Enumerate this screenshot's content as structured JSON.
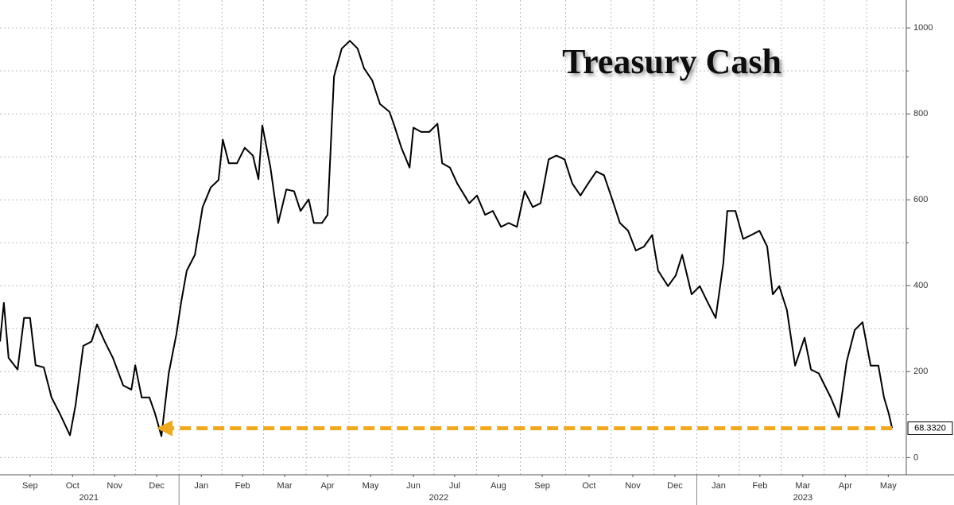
{
  "chart_data": {
    "type": "line",
    "title": "Treasury Cash",
    "x": [
      0,
      0.09,
      0.2,
      0.41,
      0.56,
      0.7,
      0.83,
      1.02,
      1.2,
      1.39,
      1.63,
      1.76,
      1.94,
      2.13,
      2.26,
      2.44,
      2.63,
      2.87,
      3.06,
      3.15,
      3.3,
      3.48,
      3.61,
      3.76,
      3.93,
      4.11,
      4.22,
      4.35,
      4.54,
      4.72,
      4.91,
      5.09,
      5.19,
      5.33,
      5.52,
      5.7,
      5.89,
      6.02,
      6.11,
      6.3,
      6.48,
      6.67,
      6.85,
      7,
      7.19,
      7.31,
      7.5,
      7.63,
      7.78,
      7.96,
      8.15,
      8.33,
      8.48,
      8.67,
      8.85,
      9.07,
      9.17,
      9.35,
      9.54,
      9.63,
      9.81,
      10,
      10.19,
      10.3,
      10.48,
      10.65,
      10.93,
      11.11,
      11.3,
      11.48,
      11.67,
      11.85,
      12.04,
      12.22,
      12.41,
      12.59,
      12.78,
      12.96,
      13.15,
      13.33,
      13.52,
      13.7,
      13.89,
      14.07,
      14.26,
      14.44,
      14.63,
      14.81,
      15,
      15.19,
      15.33,
      15.56,
      15.74,
      15.89,
      16.11,
      16.3,
      16.48,
      16.67,
      16.85,
      16.94,
      17.13,
      17.31,
      17.5,
      17.69,
      17.87,
      18,
      18.15,
      18.33,
      18.52,
      18.74,
      18.89,
      19.07,
      19.35,
      19.54,
      19.72,
      19.91,
      20.09,
      20.28,
      20.46,
      20.59,
      20.7,
      20.78
    ],
    "series": [
      {
        "color": "#000000",
        "values": [
          270,
          360,
          232,
          205,
          325,
          325,
          215,
          210,
          140,
          103,
          52,
          122,
          260,
          270,
          310,
          270,
          232,
          168,
          158,
          215,
          140,
          140,
          103,
          50,
          196,
          288,
          362,
          435,
          472,
          583,
          629,
          646,
          740,
          685,
          685,
          721,
          703,
          648,
          773,
          675,
          546,
          624,
          620,
          574,
          601,
          546,
          546,
          565,
          887,
          952,
          970,
          952,
          906,
          878,
          823,
          805,
          777,
          721,
          675,
          768,
          758,
          758,
          777,
          685,
          675,
          638,
          592,
          610,
          565,
          574,
          537,
          546,
          537,
          620,
          583,
          592,
          694,
          703,
          694,
          638,
          610,
          638,
          666,
          657,
          601,
          546,
          528,
          482,
          491,
          518,
          435,
          399,
          424,
          472,
          380,
          399,
          362,
          325,
          454,
          574,
          574,
          509,
          518,
          528,
          491,
          380,
          399,
          343,
          214,
          279,
          205,
          196,
          140,
          94,
          223,
          297,
          315,
          214,
          214,
          140,
          103,
          68.332
        ],
        "value_labels": [
          null,
          null,
          null,
          null,
          null,
          null,
          null,
          null,
          null,
          null,
          null,
          null,
          null,
          null,
          null,
          null,
          null,
          null,
          null,
          null,
          null,
          null,
          null,
          null,
          null,
          null,
          null,
          null,
          null,
          null,
          null,
          null,
          null,
          null,
          null,
          null,
          null,
          null,
          null,
          null,
          null,
          null,
          null,
          null,
          null,
          null,
          null,
          null,
          null,
          null,
          null,
          null,
          null,
          null,
          null,
          null,
          null,
          null,
          null,
          null,
          null,
          null,
          null,
          null,
          null,
          null,
          null,
          null,
          null,
          null,
          null,
          null,
          null,
          null,
          null,
          null,
          null,
          null,
          null,
          null,
          null,
          null,
          null,
          null,
          null,
          null,
          null,
          null,
          null,
          null,
          null,
          null,
          null,
          null,
          null,
          null,
          null,
          null,
          null,
          null,
          null,
          null,
          null,
          null,
          null,
          null,
          null,
          null,
          null,
          null,
          null,
          null,
          null,
          null,
          null,
          null,
          null,
          null,
          null,
          null,
          null,
          "68.3320"
        ]
      }
    ],
    "xlim": [
      0,
      21.11
    ],
    "xticks": [
      {
        "value": 0.7,
        "label": "Sep"
      },
      {
        "value": 1.69,
        "label": "Oct"
      },
      {
        "value": 2.67,
        "label": "Nov"
      },
      {
        "value": 3.65,
        "label": "Dec"
      },
      {
        "value": 4.69,
        "label": "Jan"
      },
      {
        "value": 5.65,
        "label": "Feb"
      },
      {
        "value": 6.63,
        "label": "Mar"
      },
      {
        "value": 7.63,
        "label": "Apr"
      },
      {
        "value": 8.63,
        "label": "May"
      },
      {
        "value": 9.63,
        "label": "Jun"
      },
      {
        "value": 10.59,
        "label": "Jul"
      },
      {
        "value": 11.61,
        "label": "Aug"
      },
      {
        "value": 12.63,
        "label": "Sep"
      },
      {
        "value": 13.72,
        "label": "Oct"
      },
      {
        "value": 14.74,
        "label": "Nov"
      },
      {
        "value": 15.72,
        "label": "Dec"
      },
      {
        "value": 16.74,
        "label": "Jan"
      },
      {
        "value": 17.7,
        "label": "Feb"
      },
      {
        "value": 18.7,
        "label": "Mar"
      },
      {
        "value": 19.69,
        "label": "Apr"
      },
      {
        "value": 20.69,
        "label": "May"
      }
    ],
    "year_labels": [
      {
        "value": 2.07,
        "label": "2021"
      },
      {
        "value": 10.22,
        "label": "2022"
      },
      {
        "value": 18.7,
        "label": "2023"
      }
    ],
    "ylim": [
      -40,
      1065
    ],
    "yticks": [
      0,
      200,
      400,
      600,
      800,
      1000
    ],
    "yminor": [
      100,
      300,
      500,
      700,
      900
    ],
    "grid": true,
    "annotation_color": "#f0a81c"
  }
}
